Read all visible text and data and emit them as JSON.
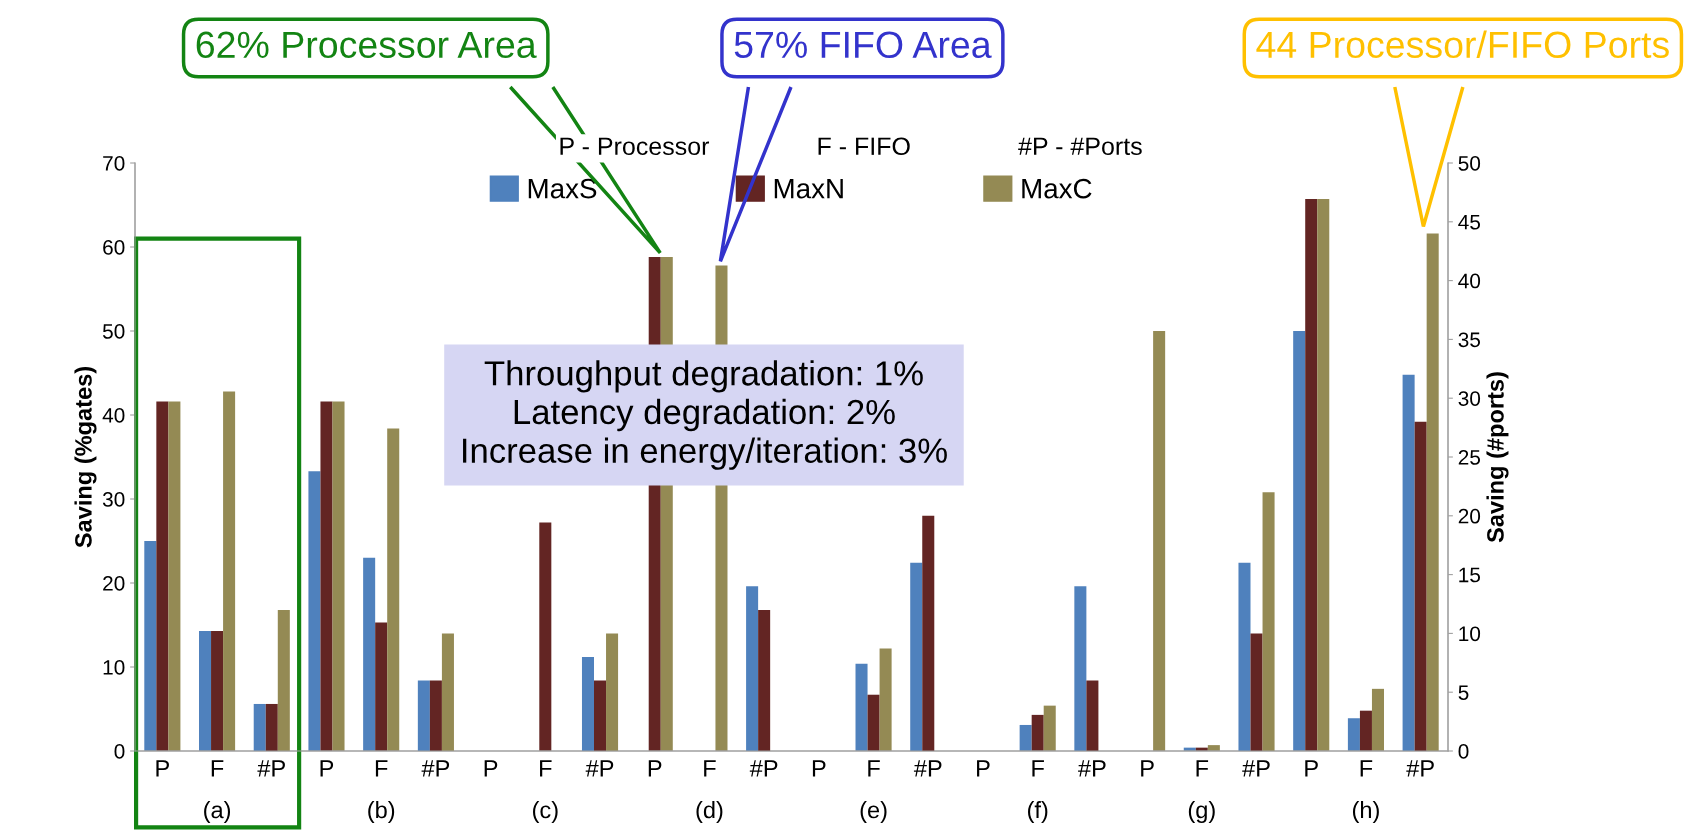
{
  "chart_data": {
    "type": "bar",
    "categories": [
      "P",
      "F",
      "#P",
      "P",
      "F",
      "#P",
      "P",
      "F",
      "#P",
      "P",
      "F",
      "#P",
      "P",
      "F",
      "#P",
      "P",
      "F",
      "#P",
      "P",
      "F",
      "#P",
      "P",
      "F",
      "#P"
    ],
    "ylabel": "Saving (%gates)",
    "y2label": "Saving (#ports)",
    "ylim": [
      0,
      70
    ],
    "yticks": [
      0,
      10,
      20,
      30,
      40,
      50,
      60,
      70
    ],
    "y2lim": [
      0,
      50
    ],
    "y2ticks": [
      0,
      5,
      10,
      15,
      20,
      25,
      30,
      35,
      40,
      45,
      50
    ],
    "legend": "top",
    "grid": false,
    "series": [
      {
        "name": "MaxS",
        "color": "#4f81bd",
        "values": [
          25,
          14.3,
          null,
          33.3,
          23,
          null,
          null,
          null,
          null,
          null,
          null,
          null,
          null,
          10.4,
          null,
          null,
          3.1,
          null,
          null,
          0.4,
          null,
          50,
          3.9,
          null
        ]
      },
      {
        "name": "MaxN",
        "color": "#632523",
        "values": [
          41.6,
          14.3,
          null,
          41.6,
          15.3,
          null,
          null,
          27.2,
          null,
          58.8,
          null,
          null,
          null,
          6.7,
          null,
          null,
          4.3,
          null,
          null,
          0.4,
          null,
          65.7,
          4.8,
          null
        ]
      },
      {
        "name": "MaxC",
        "color": "#948a54",
        "values": [
          41.6,
          42.8,
          null,
          41.6,
          38.4,
          null,
          null,
          null,
          null,
          58.8,
          57.8,
          null,
          null,
          12.2,
          null,
          null,
          5.4,
          null,
          50,
          0.7,
          null,
          65.7,
          7.4,
          null
        ]
      },
      {
        "axis": "y2",
        "color": "#4f81bd",
        "values": [
          null,
          null,
          4,
          null,
          null,
          6,
          null,
          null,
          8,
          null,
          null,
          14,
          null,
          null,
          16,
          null,
          null,
          14,
          null,
          null,
          16,
          null,
          null,
          32
        ]
      },
      {
        "axis": "y2",
        "color": "#632523",
        "values": [
          null,
          null,
          4,
          null,
          null,
          6,
          null,
          null,
          6,
          null,
          null,
          12,
          null,
          null,
          20,
          null,
          null,
          6,
          null,
          null,
          10,
          null,
          null,
          28
        ]
      },
      {
        "axis": "y2",
        "color": "#948a54",
        "values": [
          null,
          null,
          12,
          null,
          null,
          10,
          null,
          null,
          10,
          null,
          null,
          null,
          null,
          null,
          null,
          null,
          null,
          null,
          null,
          null,
          22,
          null,
          null,
          44
        ]
      }
    ],
    "annotations": [
      "P - Processor",
      "F - FIFO",
      "#P - #Ports",
      "(a)",
      "(b)",
      "(c)",
      "(d)",
      "(e)",
      "(f)",
      "(g)",
      "(h)",
      "62% Processor Area",
      "57% FIFO Area",
      "44 Processor/FIFO Ports",
      "Throughput degradation: 1%\nLatency degradation: 2%\nIncrease in energy/iteration: 3%"
    ]
  }
}
